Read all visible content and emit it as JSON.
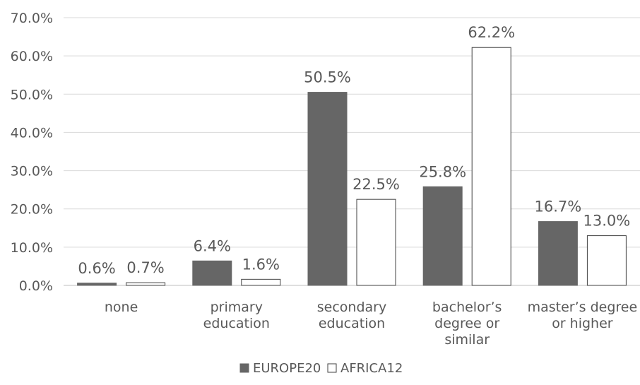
{
  "chart_data": {
    "type": "bar",
    "title": "",
    "xlabel": "",
    "ylabel": "",
    "ylim": [
      0,
      70
    ],
    "y_ticks": [
      0,
      10,
      20,
      30,
      40,
      50,
      60,
      70
    ],
    "y_tick_labels": [
      "0.0%",
      "10.0%",
      "20.0%",
      "30.0%",
      "40.0%",
      "50.0%",
      "60.0%",
      "70.0%"
    ],
    "categories": [
      [
        "none"
      ],
      [
        "primary",
        "education"
      ],
      [
        "secondary",
        "education"
      ],
      [
        "bachelor’s",
        "degree or",
        "similar"
      ],
      [
        "master’s degree",
        "or higher"
      ]
    ],
    "series": [
      {
        "name": "EUROPE20",
        "values": [
          0.6,
          6.4,
          50.5,
          25.8,
          16.7
        ],
        "labels": [
          "0.6%",
          "6.4%",
          "50.5%",
          "25.8%",
          "16.7%"
        ],
        "fill": "#666666",
        "stroke": "#666666"
      },
      {
        "name": "AFRICA12",
        "values": [
          0.7,
          1.6,
          22.5,
          62.2,
          13.0
        ],
        "labels": [
          "0.7%",
          "1.6%",
          "22.5%",
          "62.2%",
          "13.0%"
        ],
        "fill": "#ffffff",
        "stroke": "#404040"
      }
    ],
    "grid": true,
    "legend_position": "bottom"
  }
}
